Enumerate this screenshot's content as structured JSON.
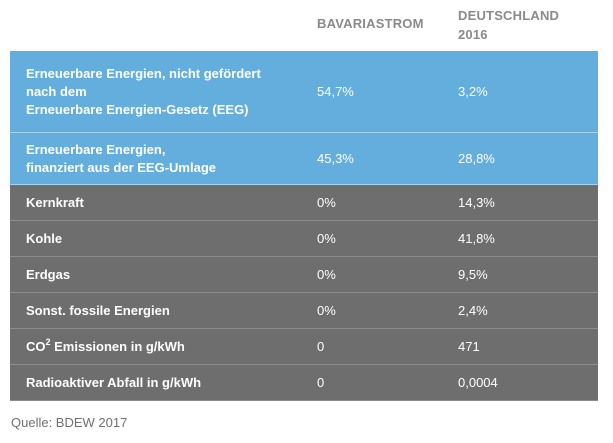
{
  "table": {
    "headers": {
      "col_a": "BAVARIASTROM",
      "col_b_line1": "DEUTSCHLAND",
      "col_b_line2": "2016"
    },
    "rows": [
      {
        "label_lines": [
          "Erneuerbare Energien, nicht gefördert",
          "nach dem",
          "Erneuerbare Energien-Gesetz (EEG)"
        ],
        "a": "54,7%",
        "b": "3,2%",
        "style": "blue"
      },
      {
        "label_lines": [
          "Erneuerbare Energien,",
          "finanziert aus der EEG-Umlage"
        ],
        "a": "45,3%",
        "b": "28,8%",
        "style": "blue"
      },
      {
        "label": "Kernkraft",
        "a": "0%",
        "b": "14,3%",
        "style": "gray"
      },
      {
        "label": "Kohle",
        "a": "0%",
        "b": "41,8%",
        "style": "gray"
      },
      {
        "label": "Erdgas",
        "a": "0%",
        "b": "9,5%",
        "style": "gray"
      },
      {
        "label": "Sonst. fossile Energien",
        "a": "0%",
        "b": "2,4%",
        "style": "gray"
      },
      {
        "label_prefix": "CO",
        "label_sup": "2",
        "label_suffix": " Emissionen in g/kWh",
        "a": "0",
        "b": "471",
        "style": "gray"
      },
      {
        "label": "Radioaktiver Abfall in g/kWh",
        "a": "0",
        "b": "0,0004",
        "style": "gray"
      }
    ]
  },
  "source": "Quelle: BDEW 2017",
  "colors": {
    "renewable_row": "#64aedd",
    "conventional_row": "#6e6e6e",
    "header_text": "#8a8a8a"
  }
}
